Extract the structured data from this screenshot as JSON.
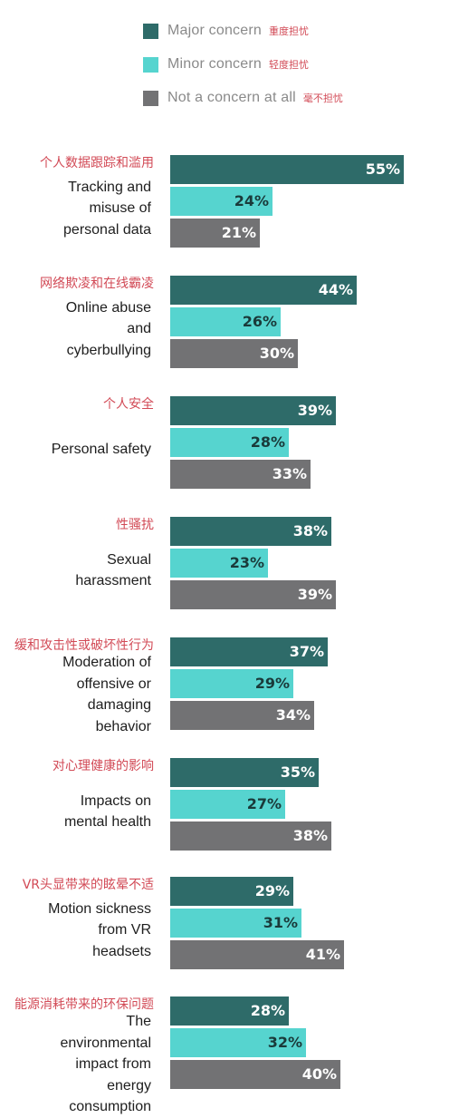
{
  "colors": {
    "major": "#2e6b69",
    "minor": "#56d4cf",
    "not": "#727274",
    "label_light": "#ffffff",
    "label_dark": "#1a3a3a",
    "zh_text": "#d24a56"
  },
  "legend": [
    {
      "en": "Major concern",
      "zh": "重度担忧",
      "color": "#2e6b69"
    },
    {
      "en": "Minor concern",
      "zh": "轻度担忧",
      "color": "#56d4cf"
    },
    {
      "en": "Not a concern at all",
      "zh": "毫不担忧",
      "color": "#727274"
    }
  ],
  "chart_data": {
    "type": "bar",
    "orientation": "horizontal",
    "xlim": [
      0,
      100
    ],
    "value_suffix": "%",
    "grid": false,
    "legend_position": "top",
    "series": [
      {
        "name": "Major concern",
        "values": [
          55,
          44,
          39,
          38,
          37,
          35,
          29,
          28
        ]
      },
      {
        "name": "Minor concern",
        "values": [
          24,
          26,
          28,
          23,
          29,
          27,
          31,
          32
        ]
      },
      {
        "name": "Not a concern at all",
        "values": [
          21,
          30,
          33,
          39,
          34,
          38,
          41,
          40
        ]
      }
    ],
    "categories": [
      {
        "zh": "个人数据跟踪和滥用",
        "en": "Tracking and\nmisuse of\npersonal data"
      },
      {
        "zh": "网络欺凌和在线霸凌",
        "en": "Online abuse\nand\ncyberbullying"
      },
      {
        "zh": "个人安全",
        "en": "Personal safety"
      },
      {
        "zh": "性骚扰",
        "en": "Sexual\nharassment"
      },
      {
        "zh": "缓和攻击性或破坏性行为",
        "en": "Moderation of\noffensive or\ndamaging\nbehavior"
      },
      {
        "zh": "对心理健康的影响",
        "en": "Impacts on\nmental health"
      },
      {
        "zh": "VR头显带来的眩晕不适",
        "en": "Motion sickness\nfrom VR\nheadsets"
      },
      {
        "zh": "能源消耗带来的环保问题",
        "en": "The\nenvironmental\nimpact from\nenergy\nconsumption"
      }
    ]
  }
}
